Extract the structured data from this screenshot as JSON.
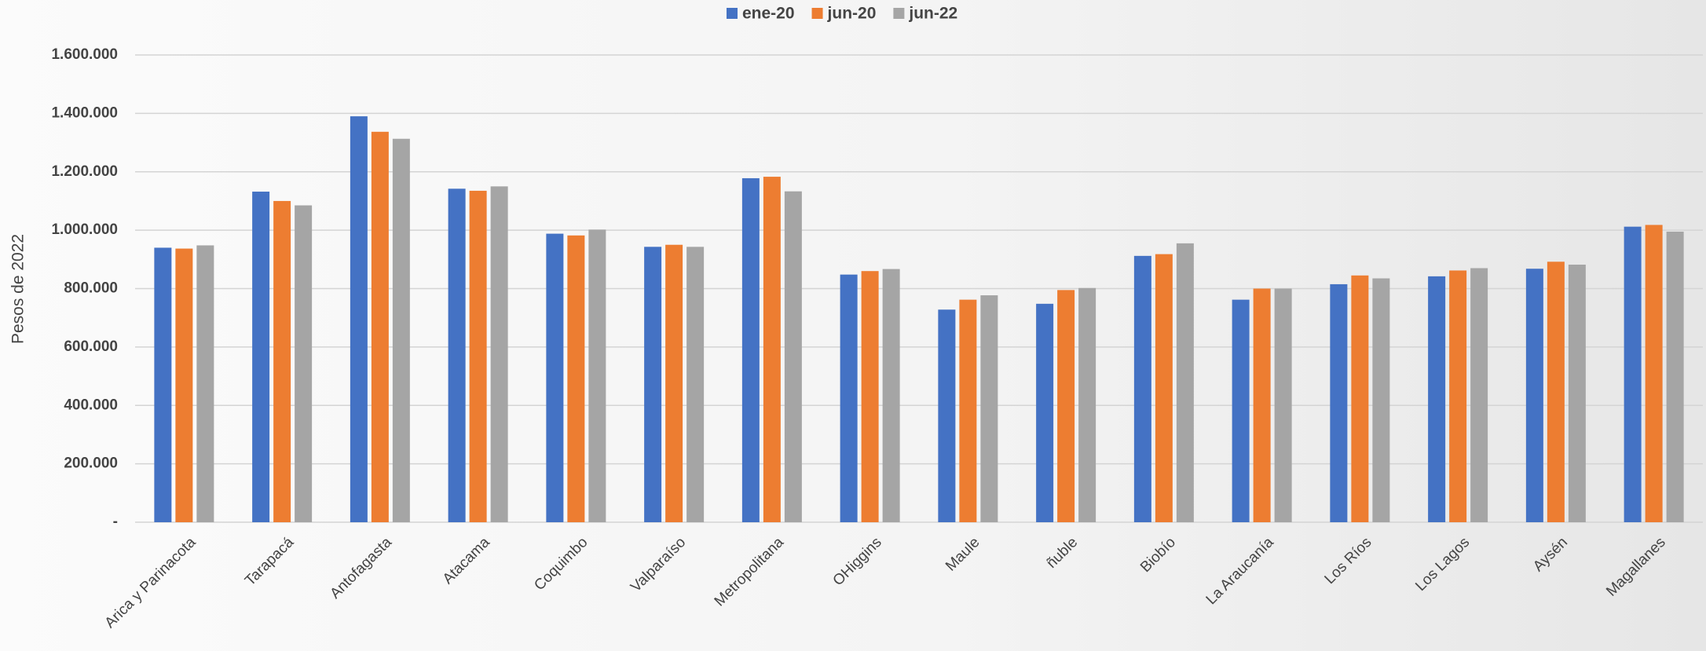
{
  "chart_data": {
    "type": "bar",
    "y_label": "Pesos de 2022",
    "categories": [
      "Arica y Parinacota",
      "Tarapacá",
      "Antofagasta",
      "Atacama",
      "Coquimbo",
      "Valparaíso",
      "Metropolitana",
      "OHiggins",
      "Maule",
      "ñuble",
      "Biobío",
      "La Araucanía",
      "Los Ríos",
      "Los Lagos",
      "Aysén",
      "Magallanes"
    ],
    "series": [
      {
        "name": "ene-20",
        "color": "#4472c4",
        "values": [
          940000,
          1132000,
          1390000,
          1142000,
          988000,
          943000,
          1178000,
          848000,
          728000,
          748000,
          912000,
          762000,
          815000,
          842000,
          868000,
          1012000
        ]
      },
      {
        "name": "jun-20",
        "color": "#ed7d31",
        "values": [
          937000,
          1100000,
          1337000,
          1135000,
          982000,
          950000,
          1183000,
          860000,
          762000,
          795000,
          918000,
          800000,
          845000,
          862000,
          892000,
          1018000
        ]
      },
      {
        "name": "jun-22",
        "color": "#a5a5a5",
        "values": [
          948000,
          1085000,
          1313000,
          1150000,
          1002000,
          943000,
          1133000,
          867000,
          777000,
          802000,
          955000,
          800000,
          835000,
          870000,
          882000,
          995000
        ]
      }
    ],
    "ylim": [
      0,
      1600000
    ],
    "yticks": [
      {
        "value": 0,
        "label": "-"
      },
      {
        "value": 200000,
        "label": "200.000"
      },
      {
        "value": 400000,
        "label": "400.000"
      },
      {
        "value": 600000,
        "label": "600.000"
      },
      {
        "value": 800000,
        "label": "800.000"
      },
      {
        "value": 1000000,
        "label": "1.000.000"
      },
      {
        "value": 1200000,
        "label": "1.200.000"
      },
      {
        "value": 1400000,
        "label": "1.400.000"
      },
      {
        "value": 1600000,
        "label": "1.600.000"
      }
    ],
    "grid": true,
    "legend": "top"
  }
}
